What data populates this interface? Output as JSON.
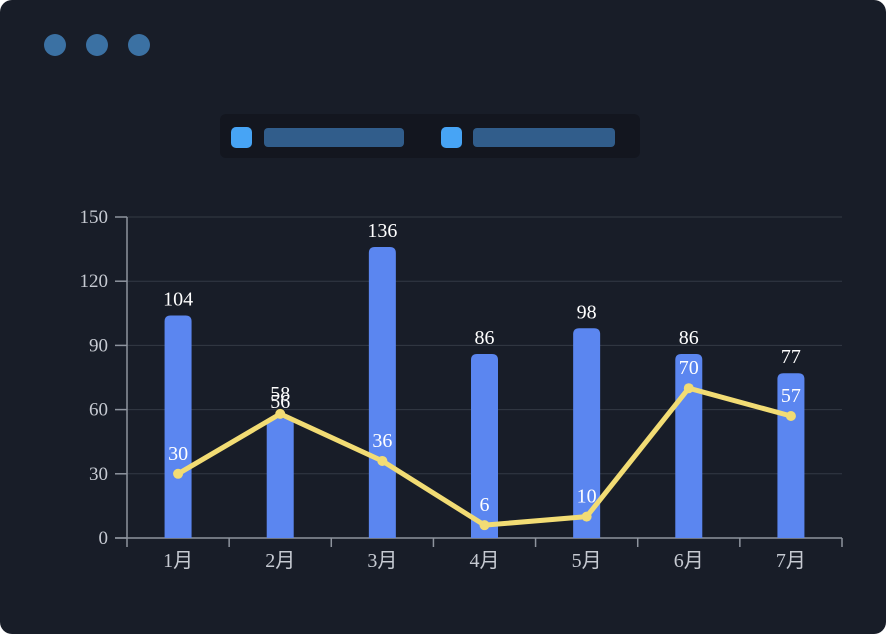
{
  "window": {
    "controls": {
      "dot_count": 3,
      "dot_color": "#3B71A3"
    },
    "background_color": "#181D28"
  },
  "legend": {
    "panel_color": "#13161F",
    "items": [
      {
        "id": "series-bar",
        "marker_color": "#47A4F5",
        "label_text": "",
        "label_redacted": true,
        "label_block_color": "#315D8B"
      },
      {
        "id": "series-line",
        "marker_color": "#47A4F5",
        "label_text": "",
        "label_redacted": true,
        "label_block_color": "#315D8B"
      }
    ]
  },
  "chart_data": {
    "type": "combo",
    "categories": [
      "1月",
      "2月",
      "3月",
      "4月",
      "5月",
      "6月",
      "7月"
    ],
    "series": [
      {
        "name": "bar-series",
        "type": "bar",
        "color": "#5B86F0",
        "label_color": "#FFFFFF",
        "values": [
          104,
          56,
          136,
          86,
          98,
          86,
          77
        ]
      },
      {
        "name": "line-series",
        "type": "line",
        "color": "#F2DC74",
        "label_color": "#FFFFFF",
        "values": [
          30,
          58,
          36,
          6,
          10,
          70,
          57
        ]
      }
    ],
    "title": "",
    "xlabel": "",
    "ylabel": "",
    "ylim": [
      0,
      150
    ],
    "yticks": [
      0,
      30,
      60,
      90,
      120,
      150
    ],
    "grid": true,
    "grid_color": "#333A45",
    "axis_color": "#8E949E",
    "tick_label_color": "#C6CAD2",
    "legend_position": "top"
  }
}
